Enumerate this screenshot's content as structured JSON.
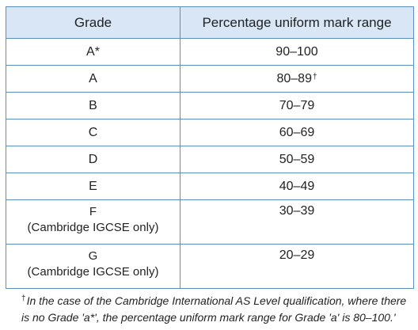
{
  "table": {
    "headers": {
      "grade": "Grade",
      "range": "Percentage uniform mark range"
    },
    "rows": [
      {
        "grade": "A*",
        "note": "",
        "range": "90–100",
        "marker": ""
      },
      {
        "grade": "A",
        "note": "",
        "range": "80–89",
        "marker": "†"
      },
      {
        "grade": "B",
        "note": "",
        "range": "70–79",
        "marker": ""
      },
      {
        "grade": "C",
        "note": "",
        "range": "60–69",
        "marker": ""
      },
      {
        "grade": "D",
        "note": "",
        "range": "50–59",
        "marker": ""
      },
      {
        "grade": "E",
        "note": "",
        "range": "40–49",
        "marker": ""
      },
      {
        "grade": "F",
        "note": "(Cambridge IGCSE only)",
        "range": "30–39",
        "marker": ""
      },
      {
        "grade": "G",
        "note": "(Cambridge IGCSE only)",
        "range": "20–29",
        "marker": ""
      }
    ]
  },
  "footnote": {
    "marker": "†",
    "line1": "In the case of the Cambridge International AS Level qualification, where there",
    "line2": "is no Grade 'a*', the percentage uniform mark range for Grade 'a' is 80–100.'"
  },
  "colors": {
    "header_bg": "#d8e6f5",
    "border": "#5a8fc4"
  }
}
